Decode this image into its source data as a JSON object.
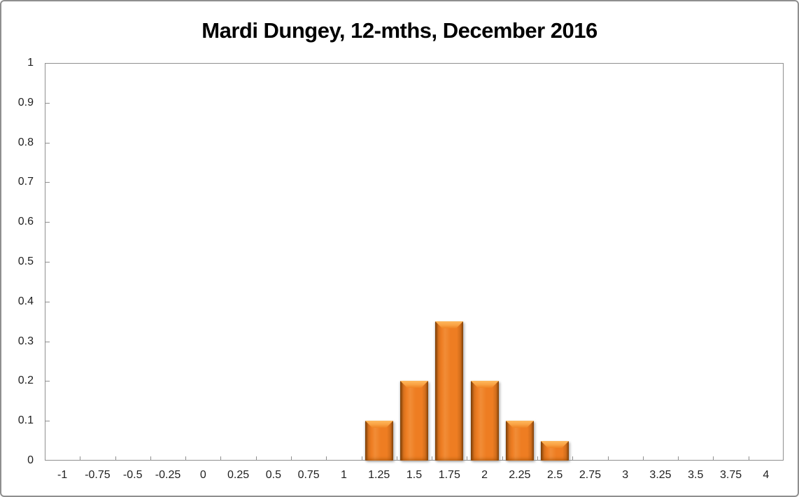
{
  "title": "Mardi Dungey, 12-mths, December 2016",
  "colors": {
    "bar": "#EE7D22",
    "bar_highlight": "#F9A243",
    "bar_edge_shadow": "#5C2E00",
    "axis_line": "#8F8F8F",
    "frame_border": "#8F8F8F",
    "tick_text": "#1F1F1F",
    "title_text": "#000000",
    "background": "#FFFFFF"
  },
  "chart_data": {
    "type": "bar",
    "title": "Mardi Dungey, 12-mths, December 2016",
    "xlabel": "",
    "ylabel": "",
    "categories": [
      "-1",
      "-0.75",
      "-0.5",
      "-0.25",
      "0",
      "0.25",
      "0.5",
      "0.75",
      "1",
      "1.25",
      "1.5",
      "1.75",
      "2",
      "2.25",
      "2.5",
      "2.75",
      "3",
      "3.25",
      "3.5",
      "3.75",
      "4"
    ],
    "values": [
      0,
      0,
      0,
      0,
      0,
      0,
      0,
      0,
      0,
      0.1,
      0.2,
      0.35,
      0.2,
      0.1,
      0.05,
      0,
      0,
      0,
      0,
      0,
      0
    ],
    "ylim": [
      0,
      1
    ],
    "yticks": [
      0,
      0.1,
      0.2,
      0.3,
      0.4,
      0.5,
      0.6,
      0.7,
      0.8,
      0.9,
      1
    ],
    "grid": false,
    "legend": "none",
    "bar_style": "3d-bevel-orange"
  }
}
